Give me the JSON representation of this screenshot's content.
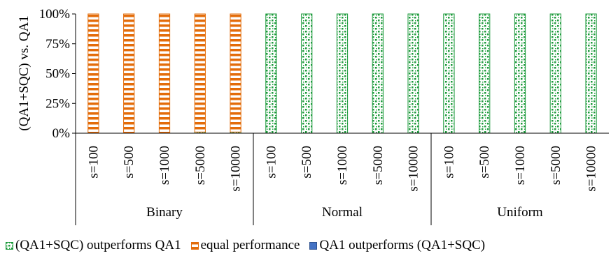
{
  "chart_data": {
    "type": "bar",
    "stacked": true,
    "ylabel": "(QA1+SQC) vs. QA1",
    "ylim": [
      0,
      100
    ],
    "yticks": [
      "0%",
      "25%",
      "50%",
      "75%",
      "100%"
    ],
    "groups": [
      {
        "name": "Binary",
        "categories": [
          "s=100",
          "s=500",
          "s=1000",
          "s=5000",
          "s=10000"
        ]
      },
      {
        "name": "Normal",
        "categories": [
          "s=100",
          "s=500",
          "s=1000",
          "s=5000",
          "s=10000"
        ]
      },
      {
        "name": "Uniform",
        "categories": [
          "s=100",
          "s=500",
          "s=1000",
          "s=5000",
          "s=10000"
        ]
      }
    ],
    "series": [
      {
        "name": "(QA1+SQC) outperforms QA1",
        "pattern": "green-dots",
        "color": "#1b9a3a",
        "values": [
          0,
          0,
          0,
          1,
          1,
          100,
          100,
          100,
          100,
          100,
          100,
          100,
          100,
          100,
          100
        ]
      },
      {
        "name": "equal performance",
        "pattern": "orange-stripes",
        "color": "#e36c0a",
        "values": [
          100,
          100,
          100,
          99,
          99,
          0,
          0,
          0,
          0,
          0,
          0,
          0,
          0,
          0,
          0
        ]
      },
      {
        "name": "QA1 outperforms (QA1+SQC)",
        "pattern": "solid-blue",
        "color": "#4472c4",
        "values": [
          0,
          0,
          0,
          0,
          0,
          0,
          0,
          0,
          0,
          0,
          0,
          0,
          0,
          0,
          0
        ]
      }
    ],
    "grid": false,
    "legend_position": "bottom"
  }
}
